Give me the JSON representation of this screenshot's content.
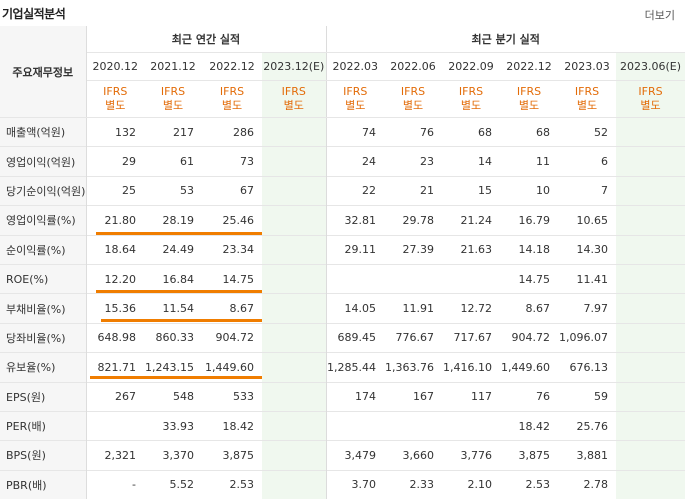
{
  "title": "기업실적분석",
  "more_label": "더보기",
  "table_header_label": "주요재무정보",
  "group_annual": "최근 연간 실적",
  "group_quarter": "최근 분기 실적",
  "periods": [
    "2020.12",
    "2021.12",
    "2022.12",
    "2023.12(E)",
    "2022.03",
    "2022.06",
    "2022.09",
    "2022.12",
    "2023.03",
    "2023.06(E)"
  ],
  "ifrs": [
    {
      "l1": "IFRS",
      "l2": "별도"
    },
    {
      "l1": "IFRS",
      "l2": "별도"
    },
    {
      "l1": "IFRS",
      "l2": "별도"
    },
    {
      "l1": "IFRS",
      "l2": "별도"
    },
    {
      "l1": "IFRS",
      "l2": "별도"
    },
    {
      "l1": "IFRS",
      "l2": "별도"
    },
    {
      "l1": "IFRS",
      "l2": "별도"
    },
    {
      "l1": "IFRS",
      "l2": "별도"
    },
    {
      "l1": "IFRS",
      "l2": "별도"
    },
    {
      "l1": "IFRS",
      "l2": "별도"
    }
  ],
  "rows": [
    {
      "label": "매출액(억원)",
      "v": [
        "132",
        "217",
        "286",
        "",
        "74",
        "76",
        "68",
        "68",
        "52",
        ""
      ]
    },
    {
      "label": "영업이익(억원)",
      "v": [
        "29",
        "61",
        "73",
        "",
        "24",
        "23",
        "14",
        "11",
        "6",
        ""
      ]
    },
    {
      "label": "당기순이익(억원)",
      "v": [
        "25",
        "53",
        "67",
        "",
        "22",
        "21",
        "15",
        "10",
        "7",
        ""
      ]
    },
    {
      "label": "영업이익률(%)",
      "v": [
        "21.80",
        "28.19",
        "25.46",
        "",
        "32.81",
        "29.78",
        "21.24",
        "16.79",
        "10.65",
        ""
      ]
    },
    {
      "label": "순이익률(%)",
      "v": [
        "18.64",
        "24.49",
        "23.34",
        "",
        "29.11",
        "27.39",
        "21.63",
        "14.18",
        "14.30",
        ""
      ]
    },
    {
      "label": "ROE(%)",
      "v": [
        "12.20",
        "16.84",
        "14.75",
        "",
        "",
        "",
        "",
        "14.75",
        "11.41",
        ""
      ]
    },
    {
      "label": "부채비율(%)",
      "v": [
        "15.36",
        "11.54",
        "8.67",
        "",
        "14.05",
        "11.91",
        "12.72",
        "8.67",
        "7.97",
        ""
      ]
    },
    {
      "label": "당좌비율(%)",
      "v": [
        "648.98",
        "860.33",
        "904.72",
        "",
        "689.45",
        "776.67",
        "717.67",
        "904.72",
        "1,096.07",
        ""
      ]
    },
    {
      "label": "유보율(%)",
      "v": [
        "821.71",
        "1,243.15",
        "1,449.60",
        "",
        "1,285.44",
        "1,363.76",
        "1,416.10",
        "1,449.60",
        "676.13",
        ""
      ]
    },
    {
      "label": "EPS(원)",
      "v": [
        "267",
        "548",
        "533",
        "",
        "174",
        "167",
        "117",
        "76",
        "59",
        ""
      ]
    },
    {
      "label": "PER(배)",
      "v": [
        "",
        "33.93",
        "18.42",
        "",
        "",
        "",
        "",
        "18.42",
        "25.76",
        ""
      ]
    },
    {
      "label": "BPS(원)",
      "v": [
        "2,321",
        "3,370",
        "3,875",
        "",
        "3,479",
        "3,660",
        "3,776",
        "3,875",
        "3,881",
        ""
      ]
    },
    {
      "label": "PBR(배)",
      "v": [
        "-",
        "5.52",
        "2.53",
        "",
        "3.70",
        "2.33",
        "2.10",
        "2.53",
        "2.78",
        ""
      ]
    }
  ],
  "colors": {
    "highlight": "#f07d00",
    "ifrs_text": "#e36c09",
    "estimate_bg": "#f0f8ef",
    "label_bg": "#f6f6f6"
  }
}
